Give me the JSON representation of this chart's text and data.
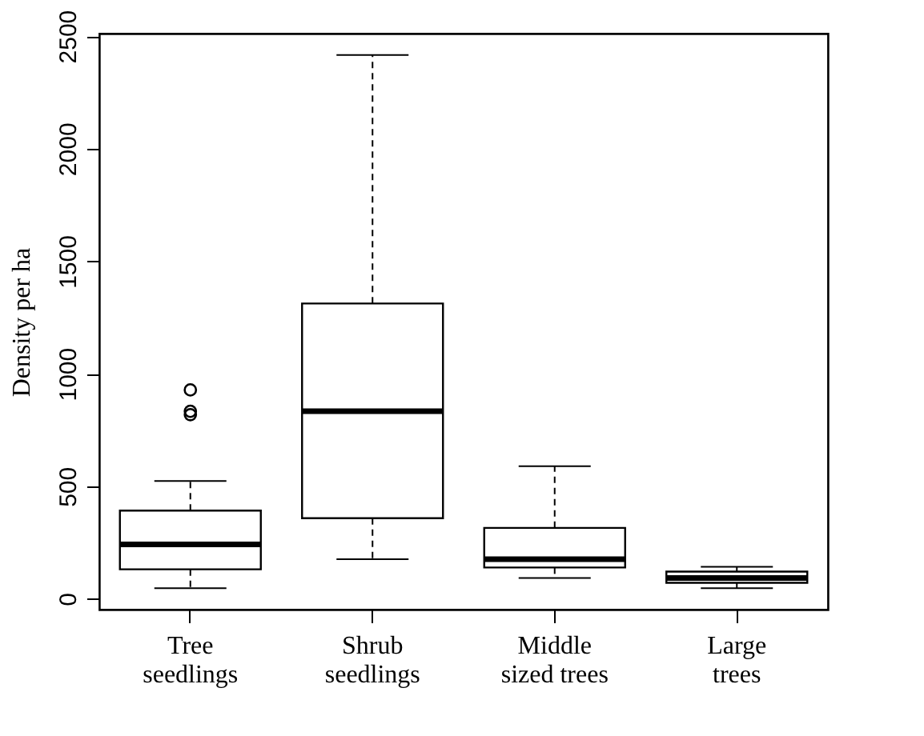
{
  "chart_data": {
    "type": "box",
    "ylabel": "Density per ha",
    "categories": [
      "Tree\nseedlings",
      "Shrub\nseedlings",
      "Middle\nsized trees",
      "Large\ntrees"
    ],
    "boxes": [
      {
        "low": 47,
        "q1": 131,
        "median": 242,
        "q3": 392,
        "high": 523,
        "outliers": [
          818,
          833,
          928
        ]
      },
      {
        "low": 176,
        "q1": 358,
        "median": 833,
        "q3": 1312,
        "high": 2416
      },
      {
        "low": 92,
        "q1": 139,
        "median": 176,
        "q3": 315,
        "high": 589
      },
      {
        "low": 47,
        "q1": 71,
        "median": 92,
        "q3": 121,
        "high": 142
      }
    ],
    "ylim": [
      -48,
      2511
    ],
    "yticks": [
      0,
      500,
      1000,
      1500,
      2000,
      2500
    ],
    "grid": false
  }
}
